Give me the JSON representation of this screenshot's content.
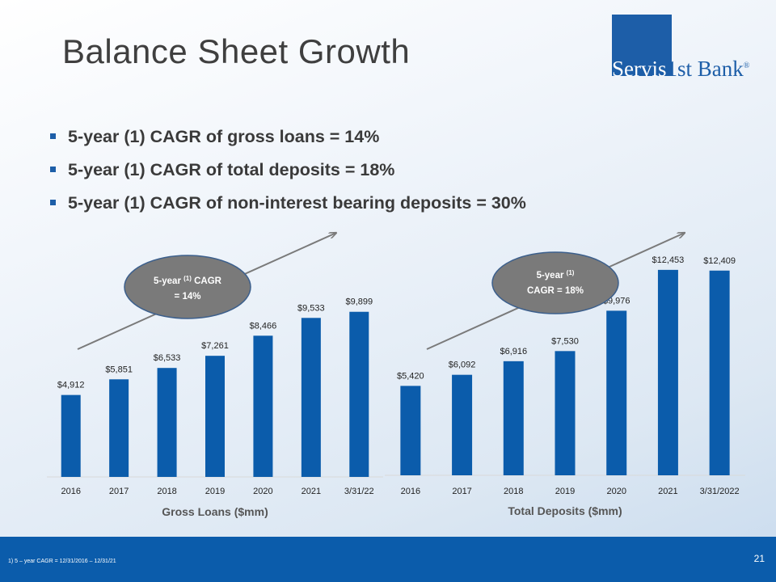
{
  "title": "Balance Sheet Growth",
  "logo": {
    "part1": "Servis",
    "part2": "1st Bank",
    "mark": "®"
  },
  "bullets": [
    "5-year (1) CAGR of gross loans = 14%",
    "5-year (1) CAGR of total deposits = 18%",
    "5-year (1) CAGR of non-interest bearing deposits = 30%"
  ],
  "colors": {
    "bar": "#0b5cab",
    "logo": "#1d5ea8",
    "oval": "#7a7a7a",
    "arrow": "#7a7a7a",
    "footer": "#0b5cab"
  },
  "ovals": [
    {
      "line1_pre": "5-year ",
      "sup": "(1)",
      "line1_post": " CAGR",
      "line2": "= 14%"
    },
    {
      "line1_pre": "5-year ",
      "sup": "(1)",
      "line1_post": "",
      "line2": "CAGR = 18%"
    }
  ],
  "chart_data": [
    {
      "type": "bar",
      "categories": [
        "2016",
        "2017",
        "2018",
        "2019",
        "2020",
        "2021",
        "3/31/22"
      ],
      "values": [
        4912,
        5851,
        6533,
        7261,
        8466,
        9533,
        9899
      ],
      "value_labels": [
        "$4,912",
        "$5,851",
        "$6,533",
        "$7,261",
        "$8,466",
        "$9,533",
        "$9,899"
      ],
      "xlabel": "Gross Loans ($mm)",
      "ylabel": "",
      "ylim": [
        0,
        12600
      ],
      "grid": false
    },
    {
      "type": "bar",
      "categories": [
        "2016",
        "2017",
        "2018",
        "2019",
        "2020",
        "2021",
        "3/31/2022"
      ],
      "values": [
        5420,
        6092,
        6916,
        7530,
        9976,
        12453,
        12409
      ],
      "value_labels": [
        "$5,420",
        "$6,092",
        "$6,916",
        "$7,530",
        "$9,976",
        "$12,453",
        "$12,409"
      ],
      "xlabel": "Total Deposits ($mm)",
      "ylabel": "",
      "ylim": [
        0,
        14700
      ],
      "grid": false
    }
  ],
  "footnote": "1)     5 – year CAGR = 12/31/2016 – 12/31/21",
  "page_number": "21"
}
